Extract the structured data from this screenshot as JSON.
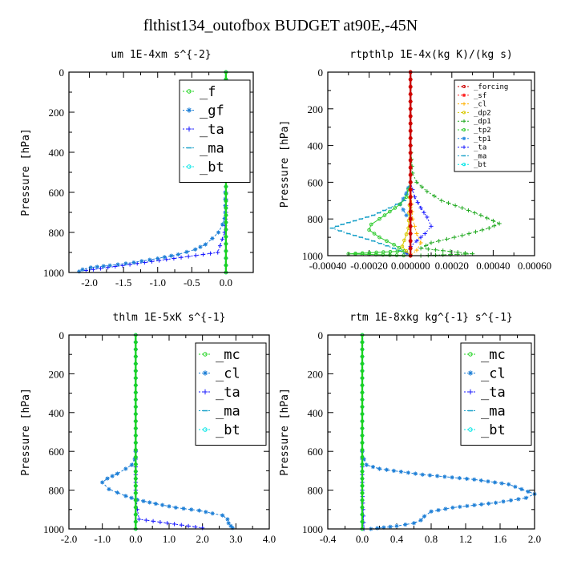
{
  "figure": {
    "title": "flthist134_outofbox  BUDGET at90E,-45N"
  },
  "chart_data": [
    {
      "type": "line",
      "title": "um  1E-4xm s^{-2}",
      "ylabel": "Pressure [hPa]",
      "xlim": [
        -2.3,
        0.4
      ],
      "ylim": [
        1000,
        0
      ],
      "xticks": [
        -2.0,
        -1.5,
        -1.0,
        -0.5,
        0.0
      ],
      "xtick_labels": [
        "-2.0",
        "-1.5",
        "-1.0",
        "-0.5",
        "0.0"
      ],
      "yticks": [
        0,
        200,
        400,
        600,
        800,
        1000
      ],
      "ytick_labels": [
        "0",
        "200",
        "400",
        "600",
        "800",
        "1000"
      ],
      "legend": "top-right",
      "legend_size": "large",
      "series": [
        {
          "name": "_f",
          "color": "#1dd31d",
          "marker": "o",
          "x": [
            0.0,
            0.0
          ],
          "y": [
            0,
            1000
          ]
        },
        {
          "name": "_gf",
          "color": "#1c7ed6",
          "marker": "*",
          "x": [
            -0.01,
            -0.01,
            -0.02,
            -0.05,
            -0.11,
            -0.2,
            -0.3,
            -0.45,
            -0.7,
            -1.0,
            -1.35,
            -1.7,
            -1.98,
            -2.1,
            -2.15
          ],
          "y": [
            600,
            700,
            730,
            760,
            800,
            830,
            860,
            885,
            910,
            930,
            950,
            965,
            975,
            985,
            995
          ]
        },
        {
          "name": "_ta",
          "color": "#1a1aff",
          "marker": "+",
          "x": [
            0.0,
            0.0,
            -0.02,
            -0.12,
            -2.05
          ],
          "y": [
            600,
            700,
            800,
            900,
            990
          ]
        },
        {
          "name": "_ma",
          "color": "#17a0c8",
          "marker": "-",
          "x": [
            0.0,
            0.0
          ],
          "y": [
            0,
            1000
          ]
        },
        {
          "name": "_bt",
          "color": "#00e6e6",
          "marker": "o",
          "x": [
            0.0,
            0.0
          ],
          "y": [
            0,
            1000
          ]
        }
      ]
    },
    {
      "type": "line",
      "title": "rtpthlp  1E-4x(kg K)/(kg s)",
      "ylabel": "Pressure [hPa]",
      "xlim": [
        -0.0004,
        0.0006
      ],
      "ylim": [
        1000,
        0
      ],
      "xticks": [
        -0.0004,
        -0.0002,
        0.0,
        0.0002,
        0.0004,
        0.0006
      ],
      "xtick_labels": [
        "-0.00040",
        "-0.00020",
        "0.000000",
        "0.00020",
        "0.00040",
        "0.00060"
      ],
      "yticks": [
        0,
        200,
        400,
        600,
        800,
        1000
      ],
      "ytick_labels": [
        "0",
        "200",
        "400",
        "600",
        "800",
        "1000"
      ],
      "legend": "top-right",
      "legend_size": "small",
      "series": [
        {
          "name": "_forcing",
          "color": "#cc0000",
          "marker": "o",
          "x": [
            0.0,
            0.0
          ],
          "y": [
            0,
            1000
          ]
        },
        {
          "name": "_sf",
          "color": "#ff2020",
          "marker": "*",
          "x": [
            0.0,
            0.0
          ],
          "y": [
            0,
            1000
          ]
        },
        {
          "name": "_cl",
          "color": "#ffb000",
          "marker": "+",
          "x": [
            0.0,
            0.0,
            1e-05,
            3e-05,
            5e-05,
            3e-05,
            0.0
          ],
          "y": [
            0,
            600,
            800,
            880,
            930,
            970,
            1000
          ]
        },
        {
          "name": "_dp2",
          "color": "#d8c800",
          "marker": "o",
          "x": [
            0.0,
            -1e-05,
            -4e-05,
            0.0
          ],
          "y": [
            600,
            850,
            950,
            1000
          ]
        },
        {
          "name": "_dp1",
          "color": "#22aa22",
          "marker": "+",
          "x": [
            0.0,
            1e-05,
            3e-05,
            8e-05,
            0.00015,
            0.00025,
            0.00034,
            0.0004,
            0.00043,
            0.00038,
            0.00025,
            0.0001,
            5e-05,
            0.0003,
            5e-05
          ],
          "y": [
            400,
            550,
            600,
            650,
            700,
            740,
            780,
            810,
            825,
            850,
            890,
            930,
            960,
            990,
            1000
          ]
        },
        {
          "name": "_tp2",
          "color": "#33cc33",
          "marker": "o",
          "x": [
            0.0,
            -2e-05,
            -5e-05,
            -0.0001,
            -0.00015,
            -0.00019,
            -0.0002,
            -0.00015,
            -8e-05,
            -3e-05,
            -0.0003,
            0.0
          ],
          "y": [
            600,
            680,
            720,
            760,
            800,
            830,
            860,
            900,
            940,
            975,
            990,
            1000
          ]
        },
        {
          "name": "_tp1",
          "color": "#2a8ae0",
          "marker": "*",
          "x": [
            0.0,
            -2e-05,
            -5e-05,
            -2e-05,
            0.0
          ],
          "y": [
            600,
            660,
            720,
            780,
            800
          ]
        },
        {
          "name": "_ta",
          "color": "#1a1aff",
          "marker": "+",
          "x": [
            0.0,
            2e-05,
            5e-05,
            8e-05,
            0.0001,
            7e-05,
            3e-05,
            0.0,
            -2e-05,
            0.0
          ],
          "y": [
            600,
            680,
            740,
            790,
            840,
            880,
            920,
            950,
            985,
            1000
          ]
        },
        {
          "name": "_ma",
          "color": "#17a0c8",
          "marker": "-",
          "x": [
            0.0,
            -3e-05,
            -0.0001,
            -0.00018,
            -0.00027,
            -0.00033,
            -0.00038,
            -0.0003,
            -0.00018,
            -8e-05,
            0.0
          ],
          "y": [
            600,
            700,
            740,
            780,
            810,
            830,
            850,
            880,
            920,
            960,
            1000
          ]
        },
        {
          "name": "_bt",
          "color": "#00e6e6",
          "marker": "o",
          "x": [
            0.0,
            0.0
          ],
          "y": [
            0,
            1000
          ]
        }
      ]
    },
    {
      "type": "line",
      "title": "thlm  1E-5xK s^{-1}",
      "ylabel": "Pressure [hPa]",
      "xlim": [
        -2.0,
        4.0
      ],
      "ylim": [
        1000,
        0
      ],
      "xticks": [
        -2.0,
        -1.0,
        0.0,
        1.0,
        2.0,
        3.0,
        4.0
      ],
      "xtick_labels": [
        "-2.0",
        "-1.0",
        "0.0",
        "1.0",
        "2.0",
        "3.0",
        "4.0"
      ],
      "yticks": [
        0,
        200,
        400,
        600,
        800,
        1000
      ],
      "ytick_labels": [
        "0",
        "200",
        "400",
        "600",
        "800",
        "1000"
      ],
      "legend": "top-right",
      "legend_size": "large",
      "series": [
        {
          "name": "_mc",
          "color": "#1dd31d",
          "marker": "o",
          "x": [
            0.0,
            0.0
          ],
          "y": [
            0,
            1000
          ]
        },
        {
          "name": "_cl",
          "color": "#1c7ed6",
          "marker": "*",
          "x": [
            0.0,
            -0.03,
            -0.12,
            -0.3,
            -0.55,
            -0.85,
            -1.0,
            -0.8,
            -0.3,
            0.05,
            0.6,
            1.2,
            1.9,
            2.3,
            2.6,
            2.75,
            2.78,
            2.85,
            2.9
          ],
          "y": [
            600,
            640,
            670,
            690,
            715,
            740,
            760,
            795,
            830,
            850,
            870,
            890,
            905,
            920,
            930,
            950,
            970,
            985,
            995
          ]
        },
        {
          "name": "_ta",
          "color": "#1a1aff",
          "marker": "+",
          "x": [
            0.0,
            0.0,
            0.02,
            0.05,
            0.1,
            2.0
          ],
          "y": [
            600,
            800,
            850,
            900,
            950,
            995
          ]
        },
        {
          "name": "_ma",
          "color": "#17a0c8",
          "marker": "-",
          "x": [
            0.0,
            0.0
          ],
          "y": [
            0,
            1000
          ]
        },
        {
          "name": "_bt",
          "color": "#00e6e6",
          "marker": "o",
          "x": [
            0.0,
            0.0
          ],
          "y": [
            0,
            1000
          ]
        }
      ]
    },
    {
      "type": "line",
      "title": "rtm  1E-8xkg kg^{-1} s^{-1}",
      "ylabel": "Pressure [hPa]",
      "xlim": [
        -0.4,
        2.0
      ],
      "ylim": [
        1000,
        0
      ],
      "xticks": [
        -0.4,
        0.0,
        0.4,
        0.8,
        1.2,
        1.6,
        2.0
      ],
      "xtick_labels": [
        "-0.4",
        "0.0",
        "0.4",
        "0.8",
        "1.2",
        "1.6",
        "2.0"
      ],
      "yticks": [
        0,
        200,
        400,
        600,
        800,
        1000
      ],
      "ytick_labels": [
        "0",
        "200",
        "400",
        "600",
        "800",
        "1000"
      ],
      "legend": "top-right",
      "legend_size": "large",
      "series": [
        {
          "name": "_mc",
          "color": "#1dd31d",
          "marker": "o",
          "x": [
            0.0,
            0.0
          ],
          "y": [
            0,
            1000
          ]
        },
        {
          "name": "_cl",
          "color": "#1c7ed6",
          "marker": "*",
          "x": [
            0.0,
            0.02,
            0.05,
            0.2,
            0.7,
            1.3,
            1.7,
            1.85,
            2.0,
            1.9,
            1.55,
            1.05,
            0.8,
            0.72,
            0.68,
            0.6,
            0.4,
            0.1
          ],
          "y": [
            600,
            640,
            670,
            690,
            720,
            745,
            770,
            795,
            820,
            840,
            865,
            890,
            910,
            935,
            955,
            970,
            985,
            1000
          ]
        },
        {
          "name": "_ta",
          "color": "#1a1aff",
          "marker": "+",
          "x": [
            0.0,
            0.0,
            0.01,
            0.02
          ],
          "y": [
            600,
            800,
            900,
            1000
          ]
        },
        {
          "name": "_ma",
          "color": "#17a0c8",
          "marker": "-",
          "x": [
            0.0,
            0.0
          ],
          "y": [
            0,
            1000
          ]
        },
        {
          "name": "_bt",
          "color": "#00e6e6",
          "marker": "o",
          "x": [
            0.0,
            0.0
          ],
          "y": [
            0,
            1000
          ]
        }
      ]
    }
  ]
}
